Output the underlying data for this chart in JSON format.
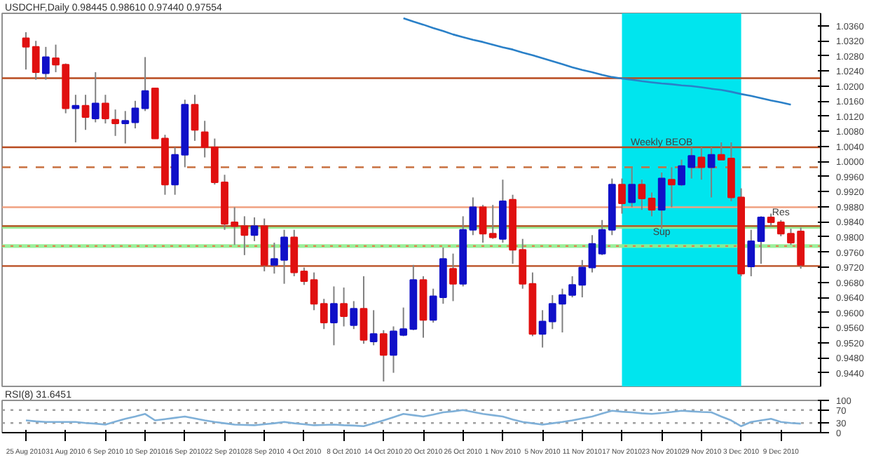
{
  "chart_data": [
    {
      "type": "candlestick",
      "title": "USDCHF,Daily 0.98445 0.98610 0.97440 0.97554",
      "categories": [
        "25 Aug 2010",
        null,
        null,
        null,
        "31 Aug 2010",
        null,
        null,
        null,
        "6 Sep 2010",
        null,
        null,
        null,
        "10 Sep 2010",
        null,
        null,
        null,
        "16 Sep 2010",
        null,
        null,
        null,
        "22 Sep 2010",
        null,
        null,
        null,
        "28 Sep 2010",
        null,
        null,
        null,
        "4 Oct 2010",
        null,
        null,
        null,
        "8 Oct 2010",
        null,
        null,
        null,
        "14 Oct 2010",
        null,
        null,
        null,
        "20 Oct 2010",
        null,
        null,
        null,
        "26 Oct 2010",
        null,
        null,
        null,
        "1 Nov 2010",
        null,
        null,
        null,
        "5 Nov 2010",
        null,
        null,
        null,
        "11 Nov 2010",
        null,
        null,
        null,
        "17 Nov 2010",
        null,
        null,
        null,
        "23 Nov 2010",
        null,
        null,
        null,
        "29 Nov 2010",
        null,
        null,
        null,
        "3 Dec 2010",
        null,
        null,
        null,
        "9 Dec 2010",
        null,
        null
      ],
      "ohlc": [
        [
          1.0327,
          1.0343,
          1.0244,
          1.0304
        ],
        [
          1.0304,
          1.032,
          1.0217,
          1.0237
        ],
        [
          1.0234,
          1.0304,
          1.0217,
          1.0277
        ],
        [
          1.0274,
          1.031,
          1.0237,
          1.0257
        ],
        [
          1.0257,
          1.026,
          1.0128,
          1.0141
        ],
        [
          1.0141,
          1.0177,
          1.0051,
          1.0148
        ],
        [
          1.0148,
          1.0177,
          1.0084,
          1.0118
        ],
        [
          1.0114,
          1.0237,
          1.0104,
          1.0154
        ],
        [
          1.0154,
          1.0177,
          1.0101,
          1.0114
        ],
        [
          1.0111,
          1.0138,
          1.0068,
          1.0101
        ],
        [
          1.0101,
          1.0134,
          1.0048,
          1.0108
        ],
        [
          1.0104,
          1.0161,
          1.0088,
          1.0141
        ],
        [
          1.0141,
          1.0277,
          1.0134,
          1.0187
        ],
        [
          1.0194,
          1.0194,
          1.0061,
          1.0061
        ],
        [
          1.0061,
          1.0071,
          0.9912,
          0.9939
        ],
        [
          0.9939,
          1.0038,
          0.9912,
          1.0018
        ],
        [
          1.0018,
          1.0164,
          0.9985,
          1.0151
        ],
        [
          1.0151,
          1.0177,
          1.0055,
          1.0084
        ],
        [
          1.0078,
          1.0108,
          1.0011,
          1.0038
        ],
        [
          1.0038,
          1.0061,
          0.9939,
          0.9945
        ],
        [
          0.9945,
          0.9965,
          0.9819,
          0.9835
        ],
        [
          0.9839,
          0.9879,
          0.9779,
          0.9829
        ],
        [
          0.9829,
          0.9855,
          0.9752,
          0.9805
        ],
        [
          0.9805,
          0.9852,
          0.9789,
          0.9829
        ],
        [
          0.9829,
          0.9849,
          0.9709,
          0.9726
        ],
        [
          0.9726,
          0.9785,
          0.9703,
          0.9742
        ],
        [
          0.9739,
          0.9819,
          0.9676,
          0.9799
        ],
        [
          0.9799,
          0.9819,
          0.9696,
          0.9706
        ],
        [
          0.9709,
          0.9719,
          0.9673,
          0.9683
        ],
        [
          0.9686,
          0.9706,
          0.9606,
          0.9623
        ],
        [
          0.9623,
          0.9636,
          0.9556,
          0.9573
        ],
        [
          0.9573,
          0.9669,
          0.9513,
          0.9623
        ],
        [
          0.9623,
          0.9666,
          0.9563,
          0.959
        ],
        [
          0.9566,
          0.963,
          0.9556,
          0.961
        ],
        [
          0.961,
          0.9696,
          0.9517,
          0.9527
        ],
        [
          0.9523,
          0.9606,
          0.9513,
          0.9543
        ],
        [
          0.9543,
          0.9553,
          0.9417,
          0.9487
        ],
        [
          0.9487,
          0.9563,
          0.944,
          0.955
        ],
        [
          0.954,
          0.9613,
          0.9537,
          0.9556
        ],
        [
          0.9556,
          0.9726,
          0.9553,
          0.9686
        ],
        [
          0.9686,
          0.9696,
          0.9533,
          0.958
        ],
        [
          0.958,
          0.9663,
          0.9573,
          0.9643
        ],
        [
          0.964,
          0.9772,
          0.9623,
          0.9742
        ],
        [
          0.9716,
          0.9756,
          0.963,
          0.9676
        ],
        [
          0.9676,
          0.9855,
          0.9669,
          0.9819
        ],
        [
          0.9819,
          0.9905,
          0.9805,
          0.9879
        ],
        [
          0.9879,
          0.9885,
          0.9785,
          0.9809
        ],
        [
          0.9809,
          0.9885,
          0.9795,
          0.9799
        ],
        [
          0.9795,
          0.9952,
          0.9785,
          0.9895
        ],
        [
          0.9899,
          0.9912,
          0.9729,
          0.9766
        ],
        [
          0.9766,
          0.9795,
          0.9663,
          0.9676
        ],
        [
          0.9676,
          0.9706,
          0.9537,
          0.9543
        ],
        [
          0.9543,
          0.9606,
          0.9507,
          0.9576
        ],
        [
          0.9576,
          0.9646,
          0.9556,
          0.9623
        ],
        [
          0.9623,
          0.9663,
          0.9547,
          0.9646
        ],
        [
          0.9646,
          0.9696,
          0.964,
          0.9673
        ],
        [
          0.9673,
          0.9739,
          0.964,
          0.9719
        ],
        [
          0.9719,
          0.9805,
          0.9706,
          0.9782
        ],
        [
          0.9756,
          0.9845,
          0.9752,
          0.9819
        ],
        [
          0.9819,
          0.9955,
          0.9805,
          0.9939
        ],
        [
          0.9939,
          0.9955,
          0.9862,
          0.9889
        ],
        [
          0.9892,
          0.9985,
          0.9879,
          0.9939
        ],
        [
          0.9939,
          0.9952,
          0.9872,
          0.9902
        ],
        [
          0.9902,
          0.9918,
          0.9855,
          0.9872
        ],
        [
          0.9872,
          0.9971,
          0.9822,
          0.9955
        ],
        [
          0.9952,
          0.9985,
          0.9879,
          0.9939
        ],
        [
          0.9939,
          1.0005,
          0.9935,
          0.9988
        ],
        [
          0.9985,
          1.0038,
          0.9955,
          1.0015
        ],
        [
          1.0011,
          1.0038,
          0.9952,
          0.9985
        ],
        [
          0.9985,
          1.0038,
          0.9905,
          1.0018
        ],
        [
          1.0018,
          1.0051,
          1.0005,
          1.0005
        ],
        [
          1.0008,
          1.0051,
          0.9895,
          0.9905
        ],
        [
          0.9905,
          0.9929,
          0.9696,
          0.9703
        ],
        [
          0.9722,
          0.9819,
          0.9696,
          0.9789
        ],
        [
          0.9789,
          0.9855,
          0.9729,
          0.9852
        ],
        [
          0.9852,
          0.9862,
          0.9829,
          0.9839
        ],
        [
          0.9839,
          0.9845,
          0.9802,
          0.9809
        ],
        [
          0.9809,
          0.9822,
          0.9779,
          0.9785
        ],
        [
          0.9815,
          0.9825,
          0.9716,
          0.9726
        ]
      ],
      "colors": [
        "#e01010",
        "#e01010",
        "#1010c8",
        "#e01010",
        "#e01010",
        "#1010c8",
        "#e01010",
        "#1010c8",
        "#e01010",
        "#e01010",
        "#1010c8",
        "#1010c8",
        "#1010c8",
        "#e01010",
        "#e01010",
        "#1010c8",
        "#1010c8",
        "#e01010",
        "#e01010",
        "#e01010",
        "#e01010",
        "#e01010",
        "#e01010",
        "#1010c8",
        "#e01010",
        "#1010c8",
        "#1010c8",
        "#e01010",
        "#e01010",
        "#e01010",
        "#e01010",
        "#1010c8",
        "#e01010",
        "#1010c8",
        "#e01010",
        "#1010c8",
        "#e01010",
        "#1010c8",
        "#1010c8",
        "#1010c8",
        "#e01010",
        "#1010c8",
        "#1010c8",
        "#e01010",
        "#1010c8",
        "#1010c8",
        "#e01010",
        "#e01010",
        "#1010c8",
        "#e01010",
        "#e01010",
        "#e01010",
        "#1010c8",
        "#1010c8",
        "#1010c8",
        "#1010c8",
        "#1010c8",
        "#1010c8",
        "#1010c8",
        "#1010c8",
        "#e01010",
        "#1010c8",
        "#e01010",
        "#e01010",
        "#1010c8",
        "#e01010",
        "#1010c8",
        "#1010c8",
        "#e01010",
        "#1010c8",
        "#e01010",
        "#e01010",
        "#e01010",
        "#1010c8",
        "#1010c8",
        "#e01010",
        "#e01010",
        "#e01010",
        "#e01010"
      ],
      "series": [
        {
          "type": "line",
          "color": "#2a80c8",
          "values": [
            null,
            null,
            null,
            null,
            null,
            null,
            null,
            null,
            null,
            null,
            null,
            null,
            null,
            null,
            null,
            null,
            null,
            null,
            null,
            null,
            null,
            null,
            null,
            null,
            null,
            null,
            null,
            null,
            null,
            null,
            null,
            null,
            null,
            null,
            null,
            null,
            null,
            null,
            1.038,
            1.0371,
            1.0363,
            1.0354,
            1.0346,
            1.0337,
            1.033,
            1.0323,
            1.0317,
            1.031,
            1.0303,
            1.0297,
            1.0289,
            1.0282,
            1.0274,
            1.0266,
            1.0258,
            1.025,
            1.0243,
            1.0237,
            1.023,
            1.0224,
            1.022,
            1.0217,
            1.0213,
            1.021,
            1.0207,
            1.0205,
            1.0202,
            1.02,
            1.0197,
            1.0193,
            1.019,
            1.0185,
            1.0179,
            1.0174,
            1.0168,
            1.0162,
            1.0157,
            1.0151,
            null
          ]
        }
      ],
      "ylim": [
        0.9404,
        1.0393
      ],
      "yticks": [
        {
          "value": 1.036,
          "label": "1.0360"
        },
        {
          "value": 1.032,
          "label": "1.0320"
        },
        {
          "value": 1.028,
          "label": "1.0280"
        },
        {
          "value": 1.024,
          "label": "1.0240"
        },
        {
          "value": 1.02,
          "label": "1.0200"
        },
        {
          "value": 1.016,
          "label": "1.0160"
        },
        {
          "value": 1.012,
          "label": "1.0120"
        },
        {
          "value": 1.008,
          "label": "1.0080"
        },
        {
          "value": 1.004,
          "label": "1.0040"
        },
        {
          "value": 1.0,
          "label": "1.0000"
        },
        {
          "value": 0.996,
          "label": "0.9960"
        },
        {
          "value": 0.992,
          "label": "0.9920"
        },
        {
          "value": 0.988,
          "label": "0.9880"
        },
        {
          "value": 0.984,
          "label": "0.9840"
        },
        {
          "value": 0.98,
          "label": "0.9800"
        },
        {
          "value": 0.976,
          "label": "0.9760"
        },
        {
          "value": 0.972,
          "label": "0.9720"
        },
        {
          "value": 0.968,
          "label": "0.9680"
        },
        {
          "value": 0.964,
          "label": "0.9640"
        },
        {
          "value": 0.96,
          "label": "0.9600"
        },
        {
          "value": 0.956,
          "label": "0.9560"
        },
        {
          "value": 0.952,
          "label": "0.9520"
        },
        {
          "value": 0.948,
          "label": "0.9480"
        },
        {
          "value": 0.944,
          "label": "0.9440"
        }
      ],
      "ref_lines": [
        {
          "axis": "y",
          "value": 1.0221,
          "color": "#b84a1e",
          "line_style": "solid"
        },
        {
          "axis": "y",
          "value": 1.0038,
          "color": "#b84a1e",
          "line_style": "solid"
        },
        {
          "axis": "y",
          "value": 0.9985,
          "color": "#c87040",
          "line_style": "dashed"
        },
        {
          "axis": "y",
          "value": 0.9879,
          "color": "#f0a080",
          "line_style": "solid"
        },
        {
          "axis": "y",
          "value": 0.9829,
          "color": "#b84a1e",
          "line_style": "solid"
        },
        {
          "axis": "y",
          "value": 0.9776,
          "color": "#e08050",
          "line_style": "dotted"
        },
        {
          "axis": "y",
          "value": 0.9723,
          "color": "#b84a1e",
          "line_style": "solid"
        }
      ],
      "bands": [
        {
          "axis": "x",
          "from": "17 Nov 2010",
          "to": "3 Dec 2010",
          "color": "#00e5ee"
        },
        {
          "axis": "y",
          "from": 0.9771,
          "to": 0.9781,
          "color": "#90ee90"
        },
        {
          "axis": "y",
          "from": 0.9822,
          "to": 0.9831,
          "color": "#90ee90"
        }
      ],
      "annotations": [
        {
          "text": "Weekly BEOB",
          "x": "23 Nov 2010",
          "y": 1.005
        },
        {
          "text": "Sup",
          "x": "23 Nov 2010",
          "y": 0.9812
        },
        {
          "text": "Res",
          "x": "9 Dec 2010",
          "y": 0.9863
        }
      ],
      "tick_labels": "y",
      "grid": false
    },
    {
      "type": "line",
      "title": "RSI(8) 31.6451",
      "categories": [
        "25 Aug 2010",
        null,
        null,
        null,
        "31 Aug 2010",
        null,
        null,
        null,
        "6 Sep 2010",
        null,
        null,
        null,
        "10 Sep 2010",
        null,
        null,
        null,
        "16 Sep 2010",
        null,
        null,
        null,
        "22 Sep 2010",
        null,
        null,
        null,
        "28 Sep 2010",
        null,
        null,
        null,
        "4 Oct 2010",
        null,
        null,
        null,
        "8 Oct 2010",
        null,
        null,
        null,
        "14 Oct 2010",
        null,
        null,
        null,
        "20 Oct 2010",
        null,
        null,
        null,
        "26 Oct 2010",
        null,
        null,
        null,
        "1 Nov 2010",
        null,
        null,
        null,
        "5 Nov 2010",
        null,
        null,
        null,
        "11 Nov 2010",
        null,
        null,
        null,
        "17 Nov 2010",
        null,
        null,
        null,
        "23 Nov 2010",
        null,
        null,
        null,
        "29 Nov 2010",
        null,
        null,
        null,
        "3 Dec 2010",
        null,
        null,
        null,
        "9 Dec 2010",
        null,
        null
      ],
      "series": [
        {
          "color": "#7fb0d8",
          "values": [
            38,
            35,
            33,
            33,
            33,
            33,
            30,
            28,
            25,
            34,
            43,
            50,
            58,
            38,
            42,
            46,
            50,
            44,
            38,
            33,
            29,
            25,
            24,
            23,
            26,
            29,
            33,
            29,
            26,
            23,
            24,
            25,
            23,
            22,
            20,
            29,
            38,
            48,
            58,
            54,
            50,
            56,
            63,
            66,
            70,
            64,
            58,
            54,
            50,
            41,
            33,
            29,
            25,
            29,
            33,
            38,
            44,
            50,
            59,
            68,
            65,
            63,
            60,
            58,
            61,
            64,
            68,
            66,
            64,
            63,
            50,
            38,
            20,
            33,
            38,
            43,
            33,
            30,
            28
          ]
        }
      ],
      "ylim": [
        0,
        100
      ],
      "yticks": [
        0,
        30,
        70,
        100
      ],
      "ref_lines": [
        {
          "axis": "y",
          "value": 30,
          "color": "#a0a0a0",
          "line_style": "dotted"
        },
        {
          "axis": "y",
          "value": 70,
          "color": "#a0a0a0",
          "line_style": "dotted"
        }
      ],
      "grid": false
    }
  ]
}
